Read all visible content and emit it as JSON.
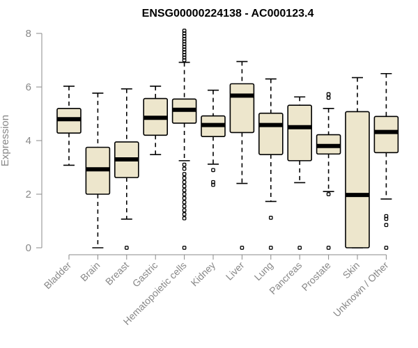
{
  "chart_data": {
    "type": "boxplot",
    "title": "ENSG00000224138 - AC000123.4",
    "xlabel": "",
    "ylabel": "Expression",
    "ylim": [
      0,
      8
    ],
    "yticks": [
      0,
      2,
      4,
      6,
      8
    ],
    "colors": {
      "box_fill": "#ede6cc",
      "stroke": "#000000",
      "axis": "#888888"
    },
    "categories": [
      "Bladder",
      "Brain",
      "Breast",
      "Gastric",
      "Hematopoietic cells",
      "Kidney",
      "Liver",
      "Lung",
      "Pancreas",
      "Prostate",
      "Skin",
      "Unknown / Other"
    ],
    "boxes": [
      {
        "name": "Bladder",
        "low": 3.08,
        "q1": 4.28,
        "median": 4.8,
        "q3": 5.2,
        "high": 6.03,
        "outliers": []
      },
      {
        "name": "Brain",
        "low": 0.0,
        "q1": 2.0,
        "median": 2.93,
        "q3": 3.75,
        "high": 5.77,
        "outliers": []
      },
      {
        "name": "Breast",
        "low": 1.07,
        "q1": 2.62,
        "median": 3.3,
        "q3": 3.95,
        "high": 5.93,
        "outliers": [
          0.0
        ]
      },
      {
        "name": "Gastric",
        "low": 3.48,
        "q1": 4.2,
        "median": 4.85,
        "q3": 5.57,
        "high": 6.03,
        "outliers": []
      },
      {
        "name": "Hematopoietic cells",
        "low": 3.25,
        "q1": 4.65,
        "median": 5.15,
        "q3": 5.55,
        "high": 6.92,
        "outliers": [
          0.0,
          1.1,
          1.25,
          1.4,
          1.55,
          1.7,
          1.85,
          2.0,
          2.15,
          2.3,
          2.45,
          2.6,
          2.75,
          2.95,
          3.1,
          7.0,
          7.1,
          7.2,
          7.3,
          7.4,
          7.5,
          7.6,
          7.7,
          7.8,
          7.9,
          8.0,
          8.1
        ]
      },
      {
        "name": "Kidney",
        "low": 3.12,
        "q1": 4.15,
        "median": 4.58,
        "q3": 4.92,
        "high": 5.88,
        "outliers": [
          2.35,
          2.45,
          2.9
        ]
      },
      {
        "name": "Liver",
        "low": 2.4,
        "q1": 4.3,
        "median": 5.68,
        "q3": 6.12,
        "high": 6.95,
        "outliers": [
          0.0
        ]
      },
      {
        "name": "Lung",
        "low": 1.73,
        "q1": 3.48,
        "median": 4.58,
        "q3": 5.02,
        "high": 6.3,
        "outliers": [
          0.0,
          1.12
        ]
      },
      {
        "name": "Pancreas",
        "low": 2.43,
        "q1": 3.25,
        "median": 4.5,
        "q3": 5.32,
        "high": 5.63,
        "outliers": [
          0.0
        ]
      },
      {
        "name": "Prostate",
        "low": 2.1,
        "q1": 3.5,
        "median": 3.8,
        "q3": 4.22,
        "high": 5.2,
        "outliers": [
          0.0,
          2.0,
          5.6,
          5.73
        ]
      },
      {
        "name": "Skin",
        "low": 0.0,
        "q1": 0.0,
        "median": 1.97,
        "q3": 5.08,
        "high": 6.35,
        "outliers": []
      },
      {
        "name": "Unknown / Other",
        "low": 1.82,
        "q1": 3.55,
        "median": 4.32,
        "q3": 4.9,
        "high": 6.5,
        "outliers": [
          0.0,
          0.85,
          1.08,
          1.18
        ]
      }
    ]
  }
}
